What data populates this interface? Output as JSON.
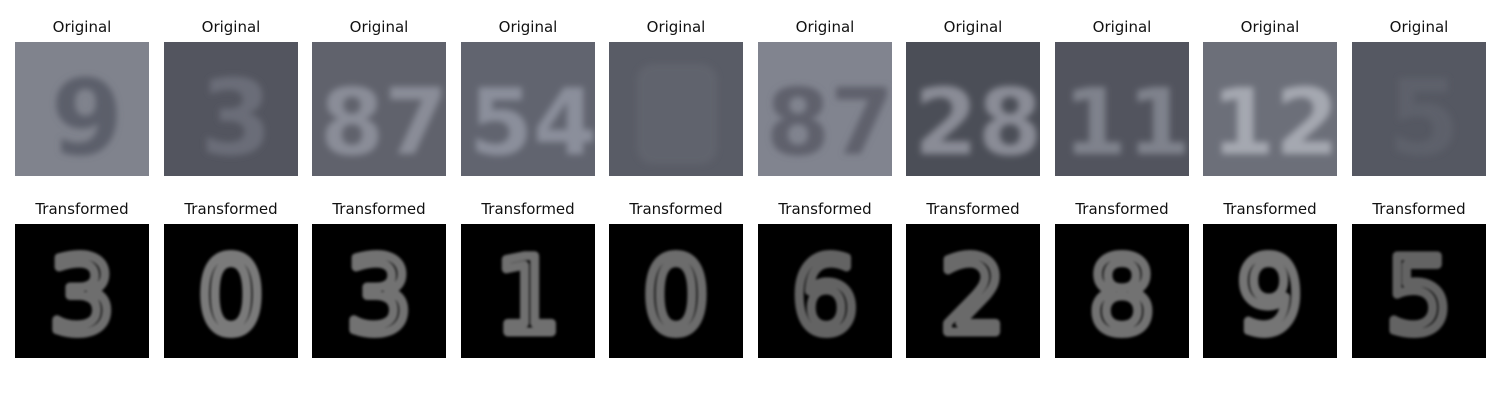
{
  "rows": [
    {
      "label": "Original",
      "panels": [
        {
          "title": "Original",
          "digit": "9",
          "bg": "#7b7e89",
          "fg": "#5c5f6b"
        },
        {
          "title": "Original",
          "digit": "3",
          "bg": "#4d4f59",
          "fg": "#6a6d78"
        },
        {
          "title": "Original",
          "digit": "87",
          "bg": "#5a5c66",
          "fg": "#8a8d98"
        },
        {
          "title": "Original",
          "digit": "54",
          "bg": "#5b5e6a",
          "fg": "#8b8f9b"
        },
        {
          "title": "Original",
          "digit": "",
          "bg": "#535660",
          "fg": "#60636d"
        },
        {
          "title": "Original",
          "digit": "87",
          "bg": "#7c7f8b",
          "fg": "#5e616c"
        },
        {
          "title": "Original",
          "digit": "28",
          "bg": "#444751",
          "fg": "#8a8c96"
        },
        {
          "title": "Original",
          "digit": "11",
          "bg": "#4b4e58",
          "fg": "#7f828c"
        },
        {
          "title": "Original",
          "digit": "12",
          "bg": "#676a74",
          "fg": "#a5a8b1"
        },
        {
          "title": "Original",
          "digit": "5",
          "bg": "#4f525c",
          "fg": "#5d606a"
        }
      ]
    },
    {
      "label": "Transformed",
      "panels": [
        {
          "title": "Transformed",
          "digit": "3",
          "bg": "#000000",
          "fg": "#6e6e6e"
        },
        {
          "title": "Transformed",
          "digit": "0",
          "bg": "#000000",
          "fg": "#7a7a7a"
        },
        {
          "title": "Transformed",
          "digit": "3",
          "bg": "#000000",
          "fg": "#727272"
        },
        {
          "title": "Transformed",
          "digit": "1",
          "bg": "#000000",
          "fg": "#6f6f6f"
        },
        {
          "title": "Transformed",
          "digit": "0",
          "bg": "#000000",
          "fg": "#6c6c6c"
        },
        {
          "title": "Transformed",
          "digit": "6",
          "bg": "#000000",
          "fg": "#646464"
        },
        {
          "title": "Transformed",
          "digit": "2",
          "bg": "#000000",
          "fg": "#6a6a6a"
        },
        {
          "title": "Transformed",
          "digit": "8",
          "bg": "#000000",
          "fg": "#727272"
        },
        {
          "title": "Transformed",
          "digit": "9",
          "bg": "#000000",
          "fg": "#747474"
        },
        {
          "title": "Transformed",
          "digit": "5",
          "bg": "#000000",
          "fg": "#636363"
        }
      ]
    }
  ]
}
